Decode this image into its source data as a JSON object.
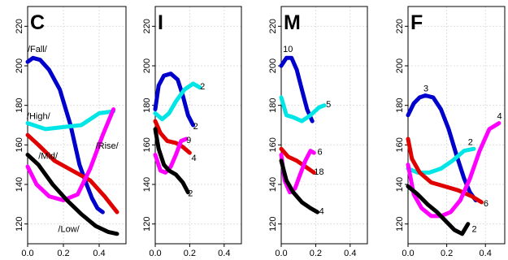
{
  "chart_data": [
    {
      "type": "line",
      "title": "C",
      "xlim": [
        0,
        0.55
      ],
      "ylim": [
        110,
        230
      ],
      "xticks": [
        "0.0",
        "0.2",
        "0.4"
      ],
      "yticks": [
        "120",
        "140",
        "160",
        "180",
        "200",
        "220"
      ],
      "grid": true,
      "series": [
        {
          "name": "Fall",
          "color": "#0000cc",
          "x": [
            0.0,
            0.03,
            0.07,
            0.12,
            0.18,
            0.24,
            0.29,
            0.33,
            0.36,
            0.39,
            0.42
          ],
          "y": [
            202,
            204,
            203,
            198,
            188,
            170,
            150,
            140,
            133,
            128,
            126
          ]
        },
        {
          "name": "High",
          "color": "#00e5e5",
          "x": [
            0.0,
            0.1,
            0.2,
            0.3,
            0.4,
            0.48
          ],
          "y": [
            171,
            168,
            169,
            170,
            176,
            177
          ]
        },
        {
          "name": "Mid",
          "color": "#e00000",
          "x": [
            0.0,
            0.06,
            0.15,
            0.25,
            0.35,
            0.43,
            0.5
          ],
          "y": [
            165,
            160,
            152,
            147,
            142,
            134,
            126
          ]
        },
        {
          "name": "Rise",
          "color": "#ff00ff",
          "x": [
            0.0,
            0.05,
            0.12,
            0.2,
            0.28,
            0.35,
            0.42,
            0.48
          ],
          "y": [
            149,
            140,
            134,
            132,
            135,
            148,
            165,
            178
          ]
        },
        {
          "name": "Low",
          "color": "#000000",
          "x": [
            0.0,
            0.06,
            0.14,
            0.22,
            0.3,
            0.38,
            0.45,
            0.5
          ],
          "y": [
            155,
            150,
            140,
            132,
            125,
            119,
            116,
            115
          ]
        }
      ],
      "annotations": [
        {
          "text": "/Fall/",
          "x": 0.0,
          "y": 207
        },
        {
          "text": "/High/",
          "x": -0.005,
          "y": 173
        },
        {
          "text": "/Mid/",
          "x": 0.06,
          "y": 153
        },
        {
          "text": "/Rise/",
          "x": 0.38,
          "y": 158
        },
        {
          "text": "/Low/",
          "x": 0.17,
          "y": 116
        }
      ]
    },
    {
      "type": "line",
      "title": "I",
      "xlim": [
        0,
        0.5
      ],
      "ylim": [
        110,
        230
      ],
      "xticks": [
        "0.0",
        "0.2",
        "0.4"
      ],
      "yticks": [
        "120",
        "140",
        "160",
        "180",
        "200",
        "220"
      ],
      "grid": true,
      "series": [
        {
          "color": "#0000cc",
          "x": [
            0.0,
            0.02,
            0.05,
            0.09,
            0.13,
            0.16,
            0.19,
            0.22
          ],
          "y": [
            178,
            190,
            195,
            196,
            193,
            185,
            175,
            170
          ]
        },
        {
          "color": "#00e5e5",
          "x": [
            0.0,
            0.04,
            0.08,
            0.12,
            0.17,
            0.22,
            0.26
          ],
          "y": [
            176,
            173,
            176,
            182,
            188,
            191,
            189
          ]
        },
        {
          "color": "#e00000",
          "x": [
            0.0,
            0.03,
            0.07,
            0.12,
            0.16,
            0.2
          ],
          "y": [
            172,
            166,
            162,
            161,
            159,
            156
          ]
        },
        {
          "color": "#ff00ff",
          "x": [
            0.0,
            0.03,
            0.06,
            0.09,
            0.12,
            0.15,
            0.18
          ],
          "y": [
            155,
            147,
            146,
            149,
            155,
            162,
            163
          ]
        },
        {
          "color": "#000000",
          "x": [
            0.0,
            0.02,
            0.05,
            0.08,
            0.12,
            0.16,
            0.19
          ],
          "y": [
            168,
            158,
            150,
            147,
            145,
            141,
            136
          ]
        }
      ],
      "annotations": [
        {
          "text": "2",
          "x": 0.26,
          "y": 188
        },
        {
          "text": "2",
          "x": 0.22,
          "y": 168
        },
        {
          "text": "9",
          "x": 0.18,
          "y": 161
        },
        {
          "text": "4",
          "x": 0.21,
          "y": 152
        },
        {
          "text": "2",
          "x": 0.19,
          "y": 134
        }
      ]
    },
    {
      "type": "line",
      "title": "M",
      "xlim": [
        0,
        0.5
      ],
      "ylim": [
        110,
        230
      ],
      "xticks": [
        "0.0",
        "0.2",
        "0.4"
      ],
      "yticks": [
        "120",
        "140",
        "160",
        "180",
        "200",
        "220"
      ],
      "grid": true,
      "series": [
        {
          "color": "#0000cc",
          "x": [
            0.0,
            0.03,
            0.06,
            0.09,
            0.12,
            0.15,
            0.18
          ],
          "y": [
            200,
            204,
            204,
            198,
            188,
            178,
            172
          ]
        },
        {
          "color": "#00e5e5",
          "x": [
            0.0,
            0.03,
            0.07,
            0.12,
            0.17,
            0.22,
            0.25
          ],
          "y": [
            184,
            175,
            174,
            172,
            175,
            179,
            180
          ]
        },
        {
          "color": "#e00000",
          "x": [
            0.0,
            0.04,
            0.09,
            0.14,
            0.19
          ],
          "y": [
            158,
            154,
            152,
            149,
            146
          ]
        },
        {
          "color": "#ff00ff",
          "x": [
            0.0,
            0.02,
            0.05,
            0.08,
            0.11,
            0.14,
            0.17,
            0.19
          ],
          "y": [
            155,
            142,
            136,
            138,
            145,
            152,
            157,
            156
          ]
        },
        {
          "color": "#000000",
          "x": [
            0.0,
            0.03,
            0.07,
            0.12,
            0.17,
            0.21
          ],
          "y": [
            152,
            142,
            136,
            131,
            128,
            126
          ]
        }
      ],
      "annotations": [
        {
          "text": "10",
          "x": 0.01,
          "y": 207
        },
        {
          "text": "5",
          "x": 0.26,
          "y": 179
        },
        {
          "text": "6",
          "x": 0.21,
          "y": 155
        },
        {
          "text": "18",
          "x": 0.19,
          "y": 145
        },
        {
          "text": "4",
          "x": 0.22,
          "y": 125
        }
      ]
    },
    {
      "type": "line",
      "title": "F",
      "xlim": [
        0,
        0.5
      ],
      "ylim": [
        110,
        230
      ],
      "xticks": [
        "0.0",
        "0.2",
        "0.4"
      ],
      "yticks": [
        "120",
        "140",
        "160",
        "180",
        "200",
        "220"
      ],
      "grid": true,
      "series": [
        {
          "color": "#0000cc",
          "x": [
            0.0,
            0.03,
            0.06,
            0.09,
            0.13,
            0.17,
            0.21,
            0.25,
            0.29,
            0.32,
            0.35
          ],
          "y": [
            175,
            181,
            184,
            185,
            184,
            178,
            168,
            155,
            143,
            136,
            132
          ]
        },
        {
          "color": "#00e5e5",
          "x": [
            0.0,
            0.05,
            0.11,
            0.17,
            0.23,
            0.29,
            0.34
          ],
          "y": [
            148,
            146,
            146,
            148,
            152,
            157,
            158
          ]
        },
        {
          "color": "#e00000",
          "x": [
            0.0,
            0.02,
            0.06,
            0.12,
            0.19,
            0.26,
            0.33,
            0.38
          ],
          "y": [
            163,
            153,
            146,
            141,
            139,
            137,
            134,
            131
          ]
        },
        {
          "color": "#ff00ff",
          "x": [
            0.0,
            0.03,
            0.07,
            0.12,
            0.17,
            0.22,
            0.27,
            0.32,
            0.37,
            0.42,
            0.47
          ],
          "y": [
            150,
            135,
            128,
            124,
            124,
            126,
            132,
            143,
            157,
            168,
            171
          ]
        },
        {
          "color": "#000000",
          "x": [
            0.0,
            0.05,
            0.1,
            0.15,
            0.2,
            0.24,
            0.28,
            0.31
          ],
          "y": [
            139,
            135,
            130,
            126,
            121,
            117,
            115,
            120
          ]
        }
      ],
      "annotations": [
        {
          "text": "3",
          "x": 0.08,
          "y": 187
        },
        {
          "text": "4",
          "x": 0.46,
          "y": 173
        },
        {
          "text": "2",
          "x": 0.31,
          "y": 160
        },
        {
          "text": "6",
          "x": 0.39,
          "y": 129
        },
        {
          "text": "2",
          "x": 0.33,
          "y": 116
        }
      ]
    }
  ]
}
